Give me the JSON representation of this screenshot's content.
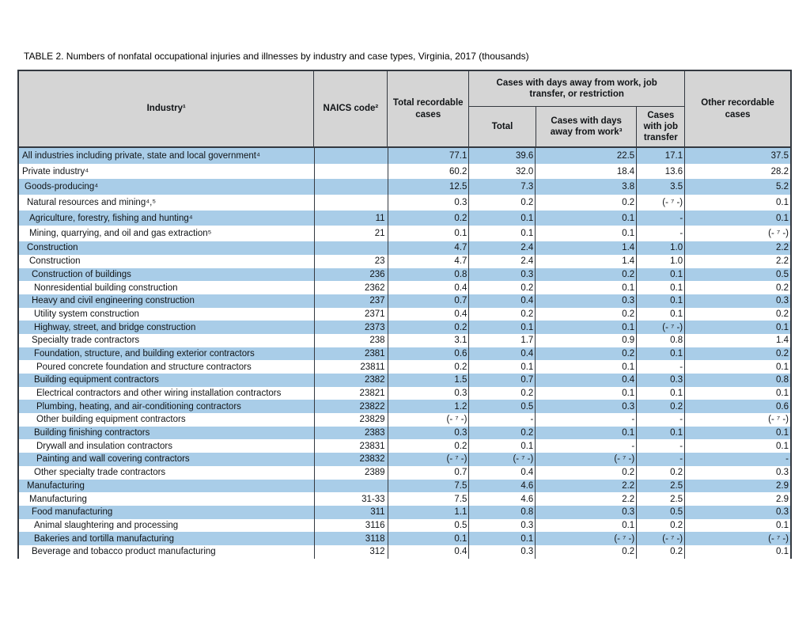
{
  "title": "TABLE 2. Numbers of nonfatal occupational injuries and illnesses by industry and case types, Virginia, 2017 (thousands)",
  "colors": {
    "row_blue": "#a9cde8",
    "header_gray": "#d5d5d5",
    "border": "#343940"
  },
  "table": {
    "columns": {
      "industry": "Industry¹",
      "naics": "NAICS code²",
      "total_recordable": "Total recordable cases",
      "group_header": "Cases with days away from work, job transfer, or restriction",
      "dafw_total": "Total",
      "days_away": "Cases with days away from work³",
      "job_transfer": "Cases with job transfer",
      "other": "Other recordable cases"
    },
    "rows": [
      {
        "industry": "All industries including private, state and local government⁴",
        "indent": 0,
        "naics": "",
        "values": [
          "77.1",
          "39.6",
          "22.5",
          "17.1",
          "37.5"
        ],
        "tall": true
      },
      {
        "industry": "Private industry⁴",
        "indent": 0,
        "naics": "",
        "values": [
          "60.2",
          "32.0",
          "18.4",
          "13.6",
          "28.2"
        ],
        "tall": true
      },
      {
        "industry": "Goods-producing⁴",
        "indent": 1,
        "naics": "",
        "values": [
          "12.5",
          "7.3",
          "3.8",
          "3.5",
          "5.2"
        ],
        "tall": true
      },
      {
        "industry": "Natural resources and mining⁴,⁵",
        "indent": 2,
        "naics": "",
        "values": [
          "0.3",
          "0.2",
          "0.2",
          "(- ⁷ -)",
          "0.1"
        ],
        "tall": true
      },
      {
        "industry": "Agriculture, forestry, fishing and hunting⁴",
        "indent": 3,
        "naics": "11",
        "values": [
          "0.2",
          "0.1",
          "0.1",
          "-",
          "0.1"
        ],
        "tall": true
      },
      {
        "industry": "Mining, quarrying, and oil and gas extraction⁵",
        "indent": 3,
        "naics": "21",
        "values": [
          "0.1",
          "0.1",
          "0.1",
          "-",
          "(- ⁷ -)"
        ],
        "tall": true
      },
      {
        "industry": "Construction",
        "indent": 2,
        "naics": "",
        "values": [
          "4.7",
          "2.4",
          "1.4",
          "1.0",
          "2.2"
        ]
      },
      {
        "industry": "Construction",
        "indent": 3,
        "naics": "23",
        "values": [
          "4.7",
          "2.4",
          "1.4",
          "1.0",
          "2.2"
        ]
      },
      {
        "industry": "Construction of buildings",
        "indent": 4,
        "naics": "236",
        "values": [
          "0.8",
          "0.3",
          "0.2",
          "0.1",
          "0.5"
        ]
      },
      {
        "industry": "Nonresidential building construction",
        "indent": 5,
        "naics": "2362",
        "values": [
          "0.4",
          "0.2",
          "0.1",
          "0.1",
          "0.2"
        ]
      },
      {
        "industry": "Heavy and civil engineering construction",
        "indent": 4,
        "naics": "237",
        "values": [
          "0.7",
          "0.4",
          "0.3",
          "0.1",
          "0.3"
        ]
      },
      {
        "industry": "Utility system construction",
        "indent": 5,
        "naics": "2371",
        "values": [
          "0.4",
          "0.2",
          "0.2",
          "0.1",
          "0.2"
        ]
      },
      {
        "industry": "Highway, street, and bridge construction",
        "indent": 5,
        "naics": "2373",
        "values": [
          "0.2",
          "0.1",
          "0.1",
          "(- ⁷ -)",
          "0.1"
        ]
      },
      {
        "industry": "Specialty trade contractors",
        "indent": 4,
        "naics": "238",
        "values": [
          "3.1",
          "1.7",
          "0.9",
          "0.8",
          "1.4"
        ]
      },
      {
        "industry": "Foundation, structure, and building exterior contractors",
        "indent": 5,
        "naics": "2381",
        "values": [
          "0.6",
          "0.4",
          "0.2",
          "0.1",
          "0.2"
        ]
      },
      {
        "industry": "Poured concrete foundation and structure contractors",
        "indent": 6,
        "naics": "23811",
        "values": [
          "0.2",
          "0.1",
          "0.1",
          "-",
          "0.1"
        ]
      },
      {
        "industry": "Building equipment contractors",
        "indent": 5,
        "naics": "2382",
        "values": [
          "1.5",
          "0.7",
          "0.4",
          "0.3",
          "0.8"
        ]
      },
      {
        "industry": "Electrical contractors and other wiring installation contractors",
        "indent": 6,
        "naics": "23821",
        "values": [
          "0.3",
          "0.2",
          "0.1",
          "0.1",
          "0.1"
        ]
      },
      {
        "industry": "Plumbing, heating, and air-conditioning contractors",
        "indent": 6,
        "naics": "23822",
        "values": [
          "1.2",
          "0.5",
          "0.3",
          "0.2",
          "0.6"
        ]
      },
      {
        "industry": "Other building equipment contractors",
        "indent": 6,
        "naics": "23829",
        "values": [
          "(- ⁷ -)",
          "-",
          "-",
          "-",
          "(- ⁷ -)"
        ]
      },
      {
        "industry": "Building finishing contractors",
        "indent": 5,
        "naics": "2383",
        "values": [
          "0.3",
          "0.2",
          "0.1",
          "0.1",
          "0.1"
        ]
      },
      {
        "industry": "Drywall and insulation contractors",
        "indent": 6,
        "naics": "23831",
        "values": [
          "0.2",
          "0.1",
          "-",
          "-",
          "0.1"
        ]
      },
      {
        "industry": "Painting and wall covering contractors",
        "indent": 6,
        "naics": "23832",
        "values": [
          "(- ⁷ -)",
          "(- ⁷ -)",
          "(- ⁷ -)",
          "-",
          "-"
        ]
      },
      {
        "industry": "Other specialty trade contractors",
        "indent": 5,
        "naics": "2389",
        "values": [
          "0.7",
          "0.4",
          "0.2",
          "0.2",
          "0.3"
        ]
      },
      {
        "industry": "Manufacturing",
        "indent": 2,
        "naics": "",
        "values": [
          "7.5",
          "4.6",
          "2.2",
          "2.5",
          "2.9"
        ]
      },
      {
        "industry": "Manufacturing",
        "indent": 3,
        "naics": "31-33",
        "values": [
          "7.5",
          "4.6",
          "2.2",
          "2.5",
          "2.9"
        ]
      },
      {
        "industry": "Food manufacturing",
        "indent": 4,
        "naics": "311",
        "values": [
          "1.1",
          "0.8",
          "0.3",
          "0.5",
          "0.3"
        ]
      },
      {
        "industry": "Animal slaughtering and processing",
        "indent": 5,
        "naics": "3116",
        "values": [
          "0.5",
          "0.3",
          "0.1",
          "0.2",
          "0.1"
        ]
      },
      {
        "industry": "Bakeries and tortilla manufacturing",
        "indent": 5,
        "naics": "3118",
        "values": [
          "0.1",
          "0.1",
          "(- ⁷ -)",
          "(- ⁷ -)",
          "(- ⁷ -)"
        ]
      },
      {
        "industry": "Beverage and tobacco product manufacturing",
        "indent": 4,
        "naics": "312",
        "values": [
          "0.4",
          "0.3",
          "0.2",
          "0.2",
          "0.1"
        ]
      }
    ]
  }
}
